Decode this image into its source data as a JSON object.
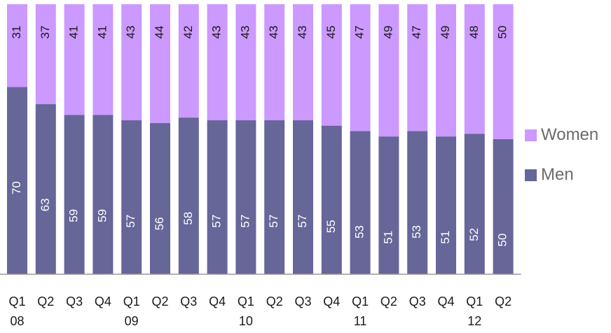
{
  "chart_data": {
    "type": "bar",
    "stacked": true,
    "percent_stacked": true,
    "categories": [
      "Q1 08",
      "Q2",
      "Q3",
      "Q4",
      "Q1 09",
      "Q2",
      "Q3",
      "Q4",
      "Q1 10",
      "Q2",
      "Q3",
      "Q4",
      "Q1 11",
      "Q2",
      "Q3",
      "Q4",
      "Q1 12",
      "Q2"
    ],
    "category_lines": [
      [
        "Q1",
        "08"
      ],
      [
        "Q2"
      ],
      [
        "Q3"
      ],
      [
        "Q4"
      ],
      [
        "Q1",
        "09"
      ],
      [
        "Q2"
      ],
      [
        "Q3"
      ],
      [
        "Q4"
      ],
      [
        "Q1",
        "10"
      ],
      [
        "Q2"
      ],
      [
        "Q3"
      ],
      [
        "Q4"
      ],
      [
        "Q1",
        "11"
      ],
      [
        "Q2"
      ],
      [
        "Q3"
      ],
      [
        "Q4"
      ],
      [
        "Q1",
        "12"
      ],
      [
        "Q2"
      ]
    ],
    "series": [
      {
        "name": "Men",
        "color": "#666699",
        "values": [
          70,
          63,
          59,
          59,
          57,
          56,
          58,
          57,
          57,
          57,
          57,
          55,
          53,
          51,
          53,
          51,
          52,
          50
        ]
      },
      {
        "name": "Women",
        "color": "#cc99ff",
        "values": [
          31,
          37,
          41,
          41,
          43,
          44,
          42,
          43,
          43,
          43,
          43,
          45,
          47,
          49,
          47,
          49,
          48,
          50
        ]
      }
    ],
    "data_labels": "rotated-vertical",
    "legend": "right",
    "legend_order": [
      "Women",
      "Men"
    ],
    "grid": false
  }
}
